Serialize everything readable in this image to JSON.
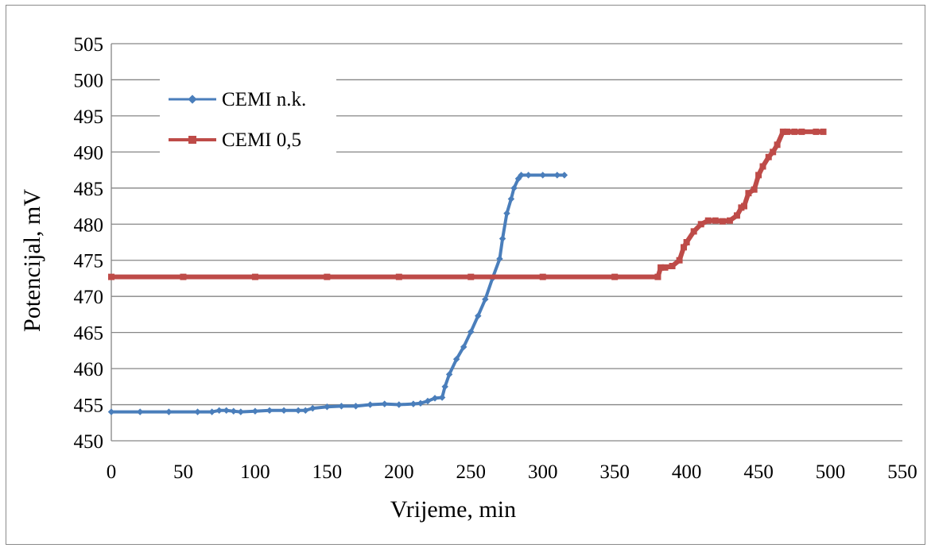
{
  "chart_data": {
    "type": "line",
    "title": "",
    "xlabel": "Vrijeme, min",
    "ylabel": "Potencijal, mV",
    "xlim": [
      0,
      550
    ],
    "ylim": [
      450,
      505
    ],
    "xticks": [
      0,
      50,
      100,
      150,
      200,
      250,
      300,
      350,
      400,
      450,
      500,
      550
    ],
    "yticks": [
      450,
      455,
      460,
      465,
      470,
      475,
      480,
      485,
      490,
      495,
      500,
      505
    ],
    "grid": "horizontal",
    "legend_position": "top-left",
    "series": [
      {
        "name": "CEMI n.k.",
        "color": "#4a7ebb",
        "marker": "diamond",
        "x": [
          0,
          20,
          40,
          60,
          70,
          75,
          80,
          85,
          90,
          100,
          110,
          120,
          130,
          135,
          140,
          150,
          160,
          170,
          180,
          190,
          200,
          210,
          215,
          220,
          225,
          230,
          232,
          235,
          240,
          245,
          250,
          255,
          260,
          265,
          270,
          272,
          275,
          278,
          280,
          283,
          285,
          290,
          300,
          310,
          315
        ],
        "y": [
          454.0,
          454.0,
          454.0,
          454.0,
          454.0,
          454.2,
          454.2,
          454.1,
          454.0,
          454.1,
          454.2,
          454.2,
          454.2,
          454.2,
          454.5,
          454.7,
          454.8,
          454.8,
          455.0,
          455.1,
          455.0,
          455.1,
          455.2,
          455.5,
          455.9,
          456.0,
          457.5,
          459.2,
          461.3,
          463.0,
          465.1,
          467.3,
          469.6,
          472.5,
          475.2,
          478.0,
          481.5,
          483.5,
          485.0,
          486.3,
          486.8,
          486.8,
          486.8,
          486.8,
          486.8
        ]
      },
      {
        "name": "CEMI 0,5",
        "color": "#be4b48",
        "marker": "square",
        "x": [
          0,
          50,
          100,
          150,
          200,
          250,
          300,
          350,
          380,
          382,
          385,
          390,
          395,
          398,
          400,
          405,
          410,
          415,
          420,
          425,
          430,
          435,
          438,
          440,
          443,
          447,
          450,
          453,
          457,
          460,
          463,
          467,
          470,
          475,
          480,
          490,
          495
        ],
        "y": [
          472.7,
          472.7,
          472.7,
          472.7,
          472.7,
          472.7,
          472.7,
          472.7,
          472.7,
          474.0,
          474.0,
          474.2,
          475.0,
          476.8,
          477.5,
          479.0,
          480.0,
          480.5,
          480.5,
          480.4,
          480.5,
          481.2,
          482.3,
          482.5,
          484.3,
          484.8,
          486.8,
          488.0,
          489.3,
          490.0,
          491.0,
          492.8,
          492.8,
          492.8,
          492.8,
          492.8,
          492.8
        ]
      }
    ]
  }
}
